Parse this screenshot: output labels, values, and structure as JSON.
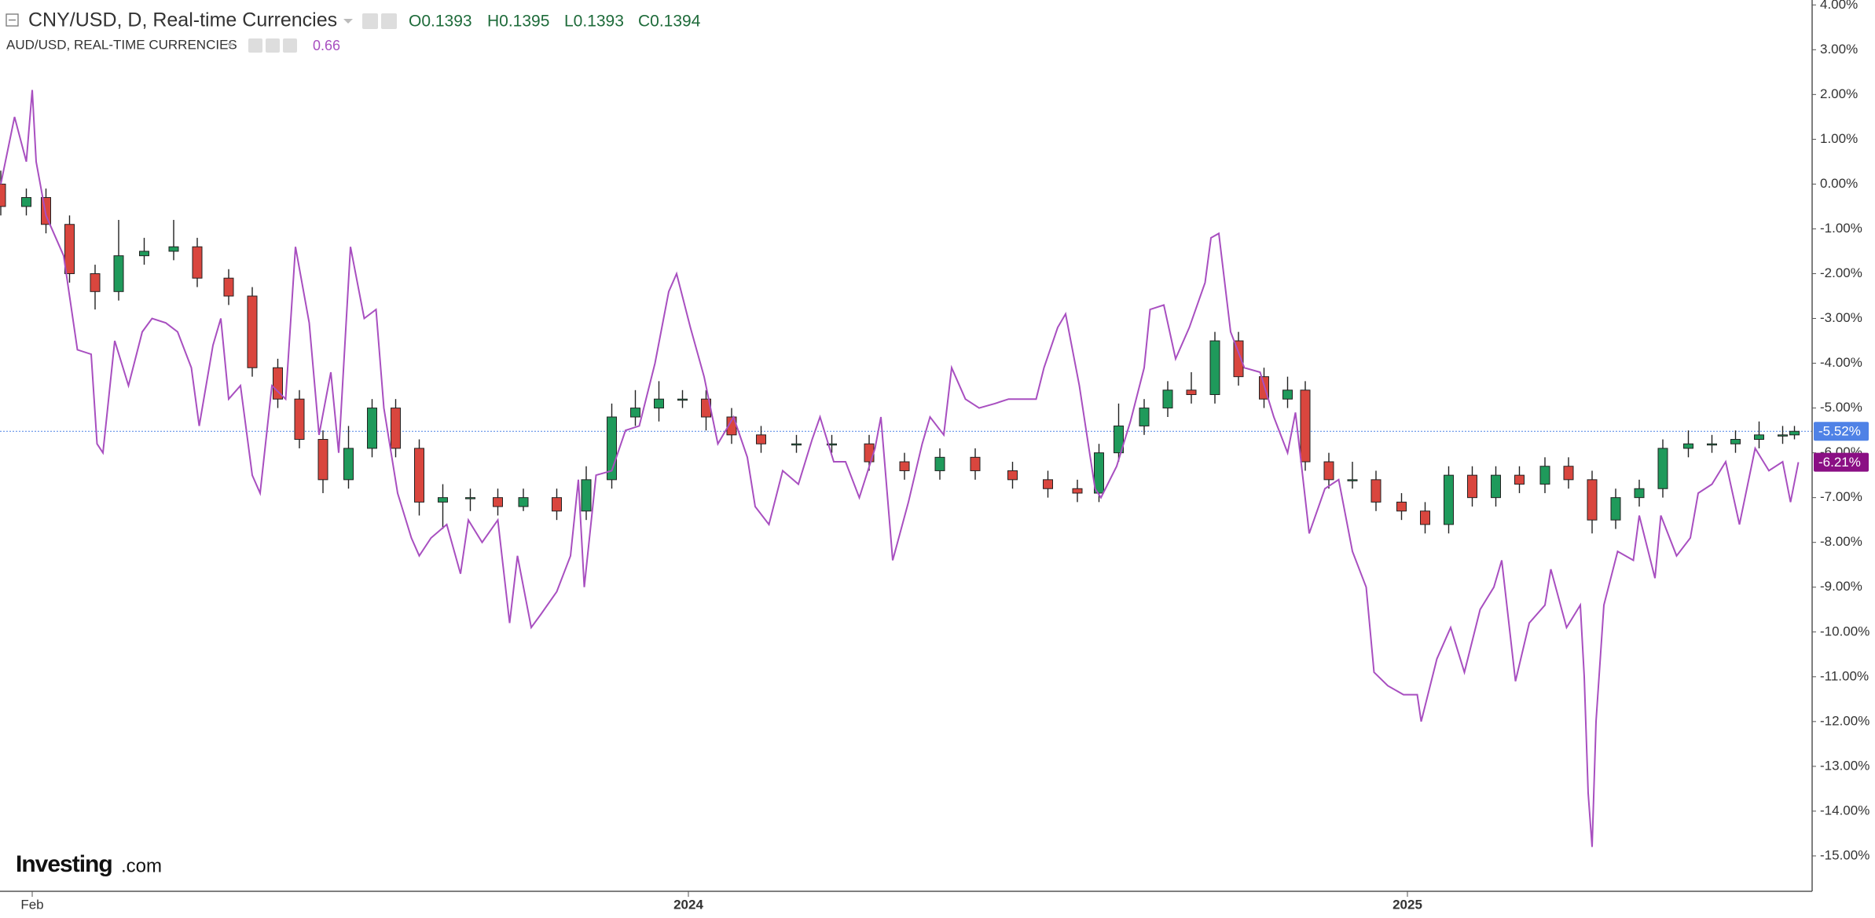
{
  "chart_data": {
    "type": "candlestick",
    "title": "CNY/USD, D, Real-time Currencies",
    "ohlc": [
      "O0.1393",
      "H0.1395",
      "L0.1393",
      "C0.1394"
    ],
    "up_color": "#1f9a5b",
    "down_color": "#d9463e",
    "last_label": "-5.52%",
    "last_color": "#4f82e6",
    "x": [
      -16,
      -3,
      7,
      19,
      32,
      44,
      57,
      72,
      84,
      100,
      112,
      125,
      136,
      148,
      161,
      173,
      185,
      197,
      209,
      223,
      237,
      250,
      267,
      282,
      295,
      307,
      319,
      331,
      343,
      356,
      371,
      389,
      407,
      426,
      444,
      462,
      480,
      499,
      517,
      532,
      543,
      553,
      566,
      578,
      590,
      602,
      614,
      627,
      639,
      648,
      660,
      672,
      684,
      697,
      709,
      721,
      733,
      745,
      757,
      770,
      782,
      794,
      806,
      818,
      830,
      843,
      855,
      867,
      879,
      891,
      897
    ],
    "open": [
      0.0,
      -0.5,
      -0.3,
      -0.9,
      -2.0,
      -2.4,
      -1.6,
      -1.5,
      -1.4,
      -2.1,
      -2.5,
      -4.1,
      -4.8,
      -5.7,
      -6.6,
      -5.9,
      -5.0,
      -5.9,
      -7.1,
      -7.0,
      -7.0,
      -7.2,
      -7.0,
      -7.3,
      -6.6,
      -5.2,
      -5.0,
      -4.8,
      -4.8,
      -5.2,
      -5.6,
      -5.8,
      -5.8,
      -5.8,
      -6.2,
      -6.4,
      -6.1,
      -6.4,
      -6.6,
      -6.8,
      -6.9,
      -6.0,
      -5.4,
      -5.0,
      -4.6,
      -4.7,
      -3.5,
      -4.3,
      -4.8,
      -4.6,
      -6.2,
      -6.6,
      -6.6,
      -7.1,
      -7.3,
      -7.6,
      -6.5,
      -7.0,
      -6.5,
      -6.7,
      -6.3,
      -6.6,
      -7.5,
      -7.0,
      -6.8,
      -5.9,
      -5.8,
      -5.8,
      -5.7,
      -5.6,
      -5.6
    ],
    "high": [
      0.3,
      -0.1,
      -0.1,
      -0.7,
      -1.8,
      -0.8,
      -1.2,
      -0.8,
      -1.2,
      -1.9,
      -2.3,
      -3.9,
      -4.6,
      -5.5,
      -5.4,
      -4.8,
      -4.8,
      -5.7,
      -6.7,
      -6.8,
      -6.8,
      -6.8,
      -6.8,
      -6.3,
      -4.9,
      -4.6,
      -4.4,
      -4.6,
      -4.6,
      -5.0,
      -5.4,
      -5.6,
      -5.6,
      -5.6,
      -6.0,
      -5.9,
      -5.9,
      -6.2,
      -6.4,
      -6.6,
      -5.8,
      -4.9,
      -4.8,
      -4.4,
      -4.2,
      -3.3,
      -3.3,
      -4.1,
      -4.3,
      -4.4,
      -6.0,
      -6.2,
      -6.4,
      -6.9,
      -7.1,
      -6.3,
      -6.3,
      -6.3,
      -6.3,
      -6.1,
      -6.1,
      -6.4,
      -6.8,
      -6.6,
      -5.7,
      -5.5,
      -5.6,
      -5.5,
      -5.3,
      -5.4,
      -5.4
    ],
    "low": [
      -0.7,
      -0.7,
      -1.1,
      -2.2,
      -2.8,
      -2.6,
      -1.8,
      -1.7,
      -2.3,
      -2.7,
      -4.3,
      -5.0,
      -5.9,
      -6.9,
      -6.8,
      -6.1,
      -6.1,
      -7.4,
      -7.7,
      -7.3,
      -7.4,
      -7.3,
      -7.5,
      -7.5,
      -6.8,
      -5.4,
      -5.3,
      -5.0,
      -5.5,
      -5.8,
      -6.0,
      -6.0,
      -6.0,
      -6.4,
      -6.6,
      -6.6,
      -6.6,
      -6.8,
      -7.0,
      -7.1,
      -7.1,
      -6.2,
      -5.6,
      -5.2,
      -4.9,
      -4.9,
      -4.5,
      -5.0,
      -5.0,
      -6.4,
      -6.8,
      -6.8,
      -7.3,
      -7.5,
      -7.8,
      -7.8,
      -7.2,
      -7.2,
      -6.9,
      -6.9,
      -6.8,
      -7.8,
      -7.7,
      -7.2,
      -7.0,
      -6.1,
      -6.0,
      -6.0,
      -5.9,
      -5.8,
      -5.7
    ],
    "close": [
      -0.5,
      -0.3,
      -0.9,
      -2.0,
      -2.4,
      -1.6,
      -1.5,
      -1.4,
      -2.1,
      -2.5,
      -4.1,
      -4.8,
      -5.7,
      -6.6,
      -5.9,
      -5.0,
      -5.9,
      -7.1,
      -7.0,
      -7.0,
      -7.2,
      -7.0,
      -7.3,
      -6.6,
      -5.2,
      -5.0,
      -4.8,
      -4.8,
      -5.2,
      -5.6,
      -5.8,
      -5.8,
      -5.8,
      -6.2,
      -6.4,
      -6.1,
      -6.4,
      -6.6,
      -6.8,
      -6.9,
      -6.0,
      -5.4,
      -5.0,
      -4.6,
      -4.7,
      -3.5,
      -4.3,
      -4.8,
      -4.6,
      -6.2,
      -6.6,
      -6.6,
      -7.1,
      -7.3,
      -7.6,
      -6.5,
      -7.0,
      -6.5,
      -6.7,
      -6.3,
      -6.6,
      -7.5,
      -7.0,
      -6.8,
      -5.9,
      -5.8,
      -5.8,
      -5.7,
      -5.6,
      -5.6,
      -5.52
    ],
    "overlay": {
      "type": "line",
      "name": "AUD/USD, REAL-TIME CURRENCIES",
      "last_price": "0.66",
      "color": "#a84fc0",
      "last_label": "-6.21%",
      "last_color": "#8a0f84",
      "x": [
        -16,
        -9,
        -3,
        0,
        2,
        7,
        16,
        23,
        30,
        33,
        36,
        42,
        49,
        56,
        61,
        68,
        74,
        81,
        85,
        92,
        96,
        100,
        106,
        112,
        116,
        122,
        129,
        134,
        141,
        146,
        152,
        156,
        162,
        169,
        175,
        179,
        186,
        193,
        197,
        203,
        211,
        218,
        222,
        229,
        237,
        243,
        247,
        254,
        259,
        267,
        274,
        278,
        281,
        287,
        295,
        302,
        309,
        317,
        324,
        328,
        335,
        342,
        349,
        357,
        364,
        368,
        375,
        382,
        390,
        397,
        401,
        408,
        414,
        421,
        429,
        432,
        438,
        446,
        453,
        457,
        464,
        468,
        475,
        482,
        490,
        497,
        504,
        511,
        515,
        522,
        526,
        533,
        541,
        544,
        552,
        559,
        566,
        569,
        576,
        582,
        589,
        597,
        600,
        604,
        610,
        617,
        625,
        632,
        639,
        643,
        650,
        658,
        665,
        672,
        679,
        683,
        690,
        698,
        705,
        707,
        715,
        722,
        729,
        737,
        744,
        748,
        755,
        762,
        770,
        773,
        781,
        788,
        790,
        792,
        794,
        796,
        800,
        807,
        815,
        818,
        826,
        829,
        837,
        844,
        848,
        855,
        862,
        869,
        877,
        884,
        891,
        895,
        899
      ],
      "values": [
        0.0,
        1.5,
        0.5,
        2.1,
        0.5,
        -0.7,
        -1.6,
        -3.7,
        -3.8,
        -5.8,
        -6.0,
        -3.5,
        -4.5,
        -3.3,
        -3.0,
        -3.1,
        -3.3,
        -4.1,
        -5.4,
        -3.6,
        -3.0,
        -4.8,
        -4.5,
        -6.5,
        -6.9,
        -4.5,
        -4.8,
        -1.4,
        -3.1,
        -5.6,
        -4.2,
        -6.0,
        -1.4,
        -3.0,
        -2.8,
        -5.0,
        -6.9,
        -7.9,
        -8.3,
        -7.9,
        -7.6,
        -8.7,
        -7.5,
        -8.0,
        -7.5,
        -9.8,
        -8.3,
        -9.9,
        -9.6,
        -9.1,
        -8.3,
        -6.6,
        -9.0,
        -6.5,
        -6.4,
        -5.5,
        -5.4,
        -4.0,
        -2.4,
        -2.0,
        -3.2,
        -4.3,
        -5.8,
        -5.2,
        -6.1,
        -7.2,
        -7.6,
        -6.4,
        -6.7,
        -5.7,
        -5.2,
        -6.2,
        -6.2,
        -7.0,
        -5.9,
        -5.2,
        -8.4,
        -7.1,
        -5.8,
        -5.2,
        -5.6,
        -4.1,
        -4.8,
        -5.0,
        -4.9,
        -4.8,
        -4.8,
        -4.8,
        -4.1,
        -3.2,
        -2.9,
        -4.5,
        -6.8,
        -7.0,
        -6.3,
        -5.3,
        -4.1,
        -2.8,
        -2.7,
        -3.9,
        -3.2,
        -2.2,
        -1.2,
        -1.1,
        -3.3,
        -4.1,
        -4.2,
        -5.2,
        -6.0,
        -5.1,
        -7.8,
        -6.8,
        -6.6,
        -8.2,
        -9.0,
        -10.9,
        -11.2,
        -11.4,
        -11.4,
        -12.0,
        -10.6,
        -9.9,
        -10.9,
        -9.5,
        -9.0,
        -8.4,
        -11.1,
        -9.8,
        -9.4,
        -8.6,
        -9.9,
        -9.4,
        -11.0,
        -13.6,
        -14.8,
        -12.0,
        -9.4,
        -8.2,
        -8.4,
        -7.4,
        -8.8,
        -7.4,
        -8.3,
        -7.9,
        -6.9,
        -6.7,
        -6.2,
        -7.6,
        -5.9,
        -6.4,
        -6.2,
        -7.1,
        -6.21
      ]
    },
    "xlim": [
      -16.4,
      906
    ],
    "xticks": [
      {
        "value": 0,
        "label": "Feb"
      },
      {
        "value": 334,
        "label": "2024"
      },
      {
        "value": 700,
        "label": "2025"
      }
    ],
    "ylim": [
      -15.79,
      4.11
    ],
    "yticks": [
      {
        "value": 4,
        "label": "4.00%"
      },
      {
        "value": 3,
        "label": "3.00%"
      },
      {
        "value": 2,
        "label": "2.00%"
      },
      {
        "value": 1,
        "label": "1.00%"
      },
      {
        "value": 0,
        "label": "0.00%"
      },
      {
        "value": -1,
        "label": "-1.00%"
      },
      {
        "value": -2,
        "label": "-2.00%"
      },
      {
        "value": -3,
        "label": "-3.00%"
      },
      {
        "value": -4,
        "label": "-4.00%"
      },
      {
        "value": -5,
        "label": "-5.00%"
      },
      {
        "value": -6,
        "label": "-6.00%"
      },
      {
        "value": -7,
        "label": "-7.00%"
      },
      {
        "value": -8,
        "label": "-8.00%"
      },
      {
        "value": -9,
        "label": "-9.00%"
      },
      {
        "value": -10,
        "label": "-10.00%"
      },
      {
        "value": -11,
        "label": "-11.00%"
      },
      {
        "value": -12,
        "label": "-12.00%"
      },
      {
        "value": -13,
        "label": "-13.00%"
      },
      {
        "value": -14,
        "label": "-14.00%"
      },
      {
        "value": -15,
        "label": "-15.00%"
      }
    ],
    "watermark": [
      "Investing",
      ".com"
    ]
  }
}
